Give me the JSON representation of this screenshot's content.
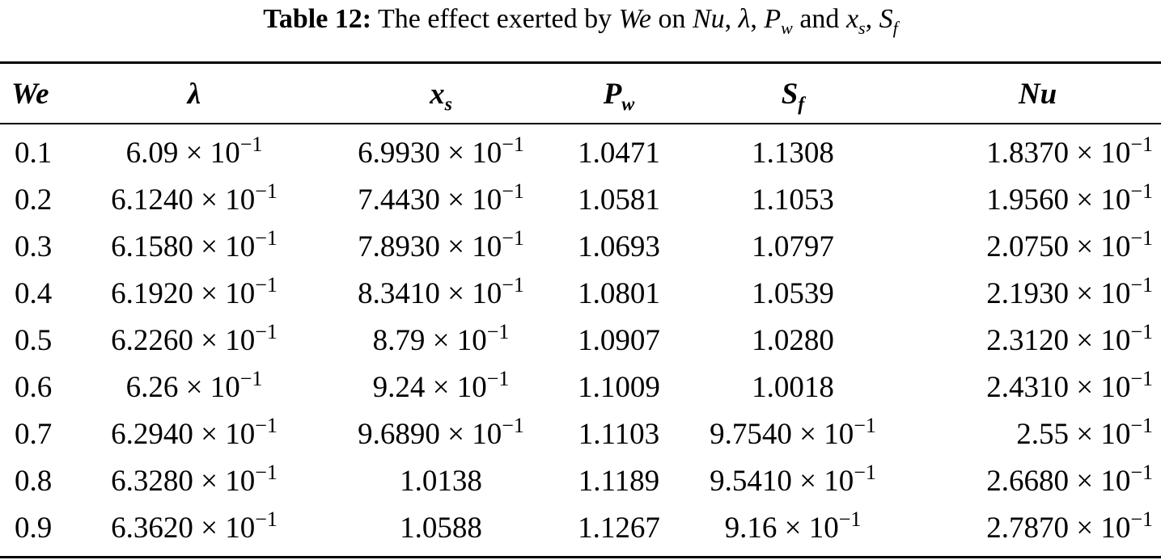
{
  "caption": {
    "label": "Table 12:",
    "text_before": "The effect exerted by",
    "sym_we": "We",
    "text_on": "on",
    "sym_nu": "Nu",
    "sym_lambda": "λ",
    "sym_p": "P",
    "sym_p_sub": "w",
    "text_and": "and",
    "sym_x": "x",
    "sym_x_sub": "s",
    "sym_s": "S",
    "sym_s_sub": "f"
  },
  "headers": [
    {
      "main": "We",
      "sub": ""
    },
    {
      "main": "λ",
      "sub": ""
    },
    {
      "main": "x",
      "sub": "s"
    },
    {
      "main": "P",
      "sub": "w"
    },
    {
      "main": "S",
      "sub": "f"
    },
    {
      "main": "Nu",
      "sub": ""
    }
  ],
  "times_sign": "×",
  "rows": [
    [
      {
        "m": "0.1"
      },
      {
        "m": "6.09",
        "b": "10",
        "e": "−1"
      },
      {
        "m": "6.9930",
        "b": "10",
        "e": "−1"
      },
      {
        "m": "1.0471"
      },
      {
        "m": "1.1308"
      },
      {
        "m": "1.8370",
        "b": "10",
        "e": "−1"
      }
    ],
    [
      {
        "m": "0.2"
      },
      {
        "m": "6.1240",
        "b": "10",
        "e": "−1"
      },
      {
        "m": "7.4430",
        "b": "10",
        "e": "−1"
      },
      {
        "m": "1.0581"
      },
      {
        "m": "1.1053"
      },
      {
        "m": "1.9560",
        "b": "10",
        "e": "−1"
      }
    ],
    [
      {
        "m": "0.3"
      },
      {
        "m": "6.1580",
        "b": "10",
        "e": "−1"
      },
      {
        "m": "7.8930",
        "b": "10",
        "e": "−1"
      },
      {
        "m": "1.0693"
      },
      {
        "m": "1.0797"
      },
      {
        "m": "2.0750",
        "b": "10",
        "e": "−1"
      }
    ],
    [
      {
        "m": "0.4"
      },
      {
        "m": "6.1920",
        "b": "10",
        "e": "−1"
      },
      {
        "m": "8.3410",
        "b": "10",
        "e": "−1"
      },
      {
        "m": "1.0801"
      },
      {
        "m": "1.0539"
      },
      {
        "m": "2.1930",
        "b": "10",
        "e": "−1"
      }
    ],
    [
      {
        "m": "0.5"
      },
      {
        "m": "6.2260",
        "b": "10",
        "e": "−1"
      },
      {
        "m": "8.79",
        "b": "10",
        "e": "−1"
      },
      {
        "m": "1.0907"
      },
      {
        "m": "1.0280"
      },
      {
        "m": "2.3120",
        "b": "10",
        "e": "−1"
      }
    ],
    [
      {
        "m": "0.6"
      },
      {
        "m": "6.26",
        "b": "10",
        "e": "−1"
      },
      {
        "m": "9.24",
        "b": "10",
        "e": "−1"
      },
      {
        "m": "1.1009"
      },
      {
        "m": "1.0018"
      },
      {
        "m": "2.4310",
        "b": "10",
        "e": "−1"
      }
    ],
    [
      {
        "m": "0.7"
      },
      {
        "m": "6.2940",
        "b": "10",
        "e": "−1"
      },
      {
        "m": "9.6890",
        "b": "10",
        "e": "−1"
      },
      {
        "m": "1.1103"
      },
      {
        "m": "9.7540",
        "b": "10",
        "e": "−1"
      },
      {
        "m": "2.55",
        "b": "10",
        "e": "−1"
      }
    ],
    [
      {
        "m": "0.8"
      },
      {
        "m": "6.3280",
        "b": "10",
        "e": "−1"
      },
      {
        "m": "1.0138"
      },
      {
        "m": "1.1189"
      },
      {
        "m": "9.5410",
        "b": "10",
        "e": "−1"
      },
      {
        "m": "2.6680",
        "b": "10",
        "e": "−1"
      }
    ],
    [
      {
        "m": "0.9"
      },
      {
        "m": "6.3620",
        "b": "10",
        "e": "−1"
      },
      {
        "m": "1.0588"
      },
      {
        "m": "1.1267"
      },
      {
        "m": "9.16",
        "b": "10",
        "e": "−1"
      },
      {
        "m": "2.7870",
        "b": "10",
        "e": "−1"
      }
    ]
  ]
}
